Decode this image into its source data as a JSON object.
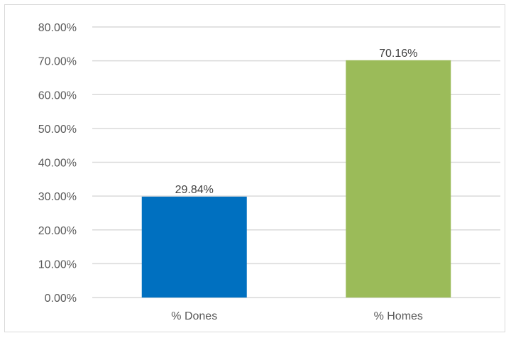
{
  "chart_data": {
    "type": "bar",
    "title": "",
    "xlabel": "",
    "ylabel": "",
    "categories": [
      "% Dones",
      "% Homes"
    ],
    "values": [
      29.84,
      70.16
    ],
    "data_labels": [
      "29.84%",
      "70.16%"
    ],
    "bar_colors": [
      "#0070c0",
      "#9bbb59"
    ],
    "ylim": [
      0,
      80
    ],
    "y_ticks": [
      0,
      10,
      20,
      30,
      40,
      50,
      60,
      70,
      80
    ],
    "y_tick_labels": [
      "0.00%",
      "10.00%",
      "20.00%",
      "30.00%",
      "40.00%",
      "50.00%",
      "60.00%",
      "70.00%",
      "80.00%"
    ],
    "grid": true,
    "legend": "none"
  }
}
